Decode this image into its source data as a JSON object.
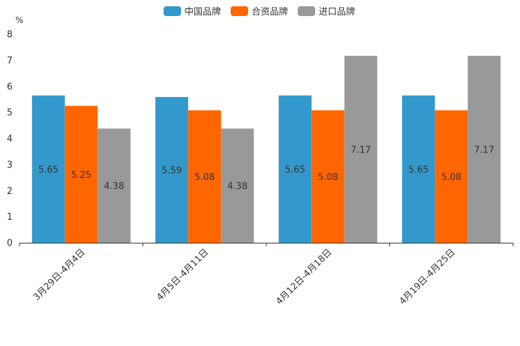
{
  "chart_data": {
    "type": "bar",
    "title": "",
    "xlabel": "",
    "ylabel": "%",
    "ylim": [
      0,
      8
    ],
    "yticks": [
      0,
      1,
      2,
      3,
      4,
      5,
      6,
      7,
      8
    ],
    "legend_position": "top-center",
    "grid": false,
    "categories": [
      "3月29日-4月4日",
      "4月5日-4月11日",
      "4月12日-4月18日",
      "4月19日-4月25日"
    ],
    "series": [
      {
        "name": "中国品牌",
        "color": "#3399CC",
        "values": [
          5.65,
          5.59,
          5.65,
          5.65
        ]
      },
      {
        "name": "合资品牌",
        "color": "#FF6600",
        "values": [
          5.25,
          5.08,
          5.08,
          5.08
        ]
      },
      {
        "name": "进口品牌",
        "color": "#999999",
        "values": [
          4.38,
          4.38,
          7.17,
          7.17
        ]
      }
    ]
  }
}
